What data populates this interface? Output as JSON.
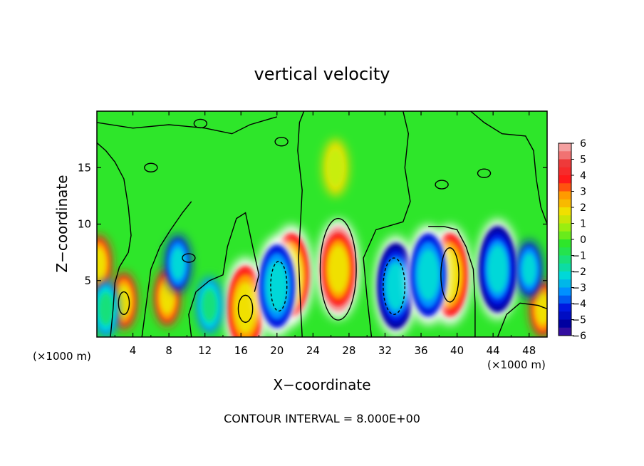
{
  "chart_data": {
    "type": "heatmap",
    "title": "vertical velocity",
    "xlabel": "X−coordinate",
    "ylabel": "Z−coordinate",
    "x_unit_left": "(×1000 m)",
    "x_unit_right": "(×1000 m)",
    "footer": "CONTOUR INTERVAL = 8.000E+00",
    "xlim": [
      0,
      50
    ],
    "ylim": [
      0,
      20
    ],
    "x_ticks": [
      "4",
      "8",
      "12",
      "16",
      "20",
      "24",
      "28",
      "32",
      "36",
      "40",
      "44",
      "48"
    ],
    "y_ticks": [
      "5",
      "10",
      "15"
    ],
    "colorbar_ticks": [
      "6",
      "5",
      "4",
      "3",
      "2",
      "1",
      "0",
      "−1",
      "−2",
      "−3",
      "−4",
      "−5",
      "−6"
    ],
    "colorbar_range": [
      -6,
      6
    ],
    "contour_interval": 8.0,
    "updrafts": [
      {
        "x": 26.8,
        "z": 6.0,
        "value": 6
      },
      {
        "x": 16.5,
        "z": 2.6,
        "value": 5
      },
      {
        "x": 39.2,
        "z": 5.5,
        "value": 5
      },
      {
        "x": 21.6,
        "z": 5.5,
        "value": 5
      },
      {
        "x": 3.0,
        "z": 3.2,
        "value": 4
      },
      {
        "x": 0.2,
        "z": 6.5,
        "value": 4
      },
      {
        "x": 7.8,
        "z": 3.5,
        "value": 4
      },
      {
        "x": 49.5,
        "z": 2.5,
        "value": 4
      },
      {
        "x": 26.5,
        "z": 15.0,
        "value": 1.5
      }
    ],
    "downdrafts": [
      {
        "x": 33.2,
        "z": 4.5,
        "value": -6
      },
      {
        "x": 20.0,
        "z": 4.5,
        "value": -5
      },
      {
        "x": 44.5,
        "z": 6.0,
        "value": -6
      },
      {
        "x": 36.8,
        "z": 5.5,
        "value": -5
      },
      {
        "x": 9.0,
        "z": 6.5,
        "value": -4
      },
      {
        "x": 1.0,
        "z": 2.5,
        "value": -3
      },
      {
        "x": 12.5,
        "z": 2.8,
        "value": -3
      },
      {
        "x": 48.0,
        "z": 6.0,
        "value": -4
      }
    ]
  }
}
